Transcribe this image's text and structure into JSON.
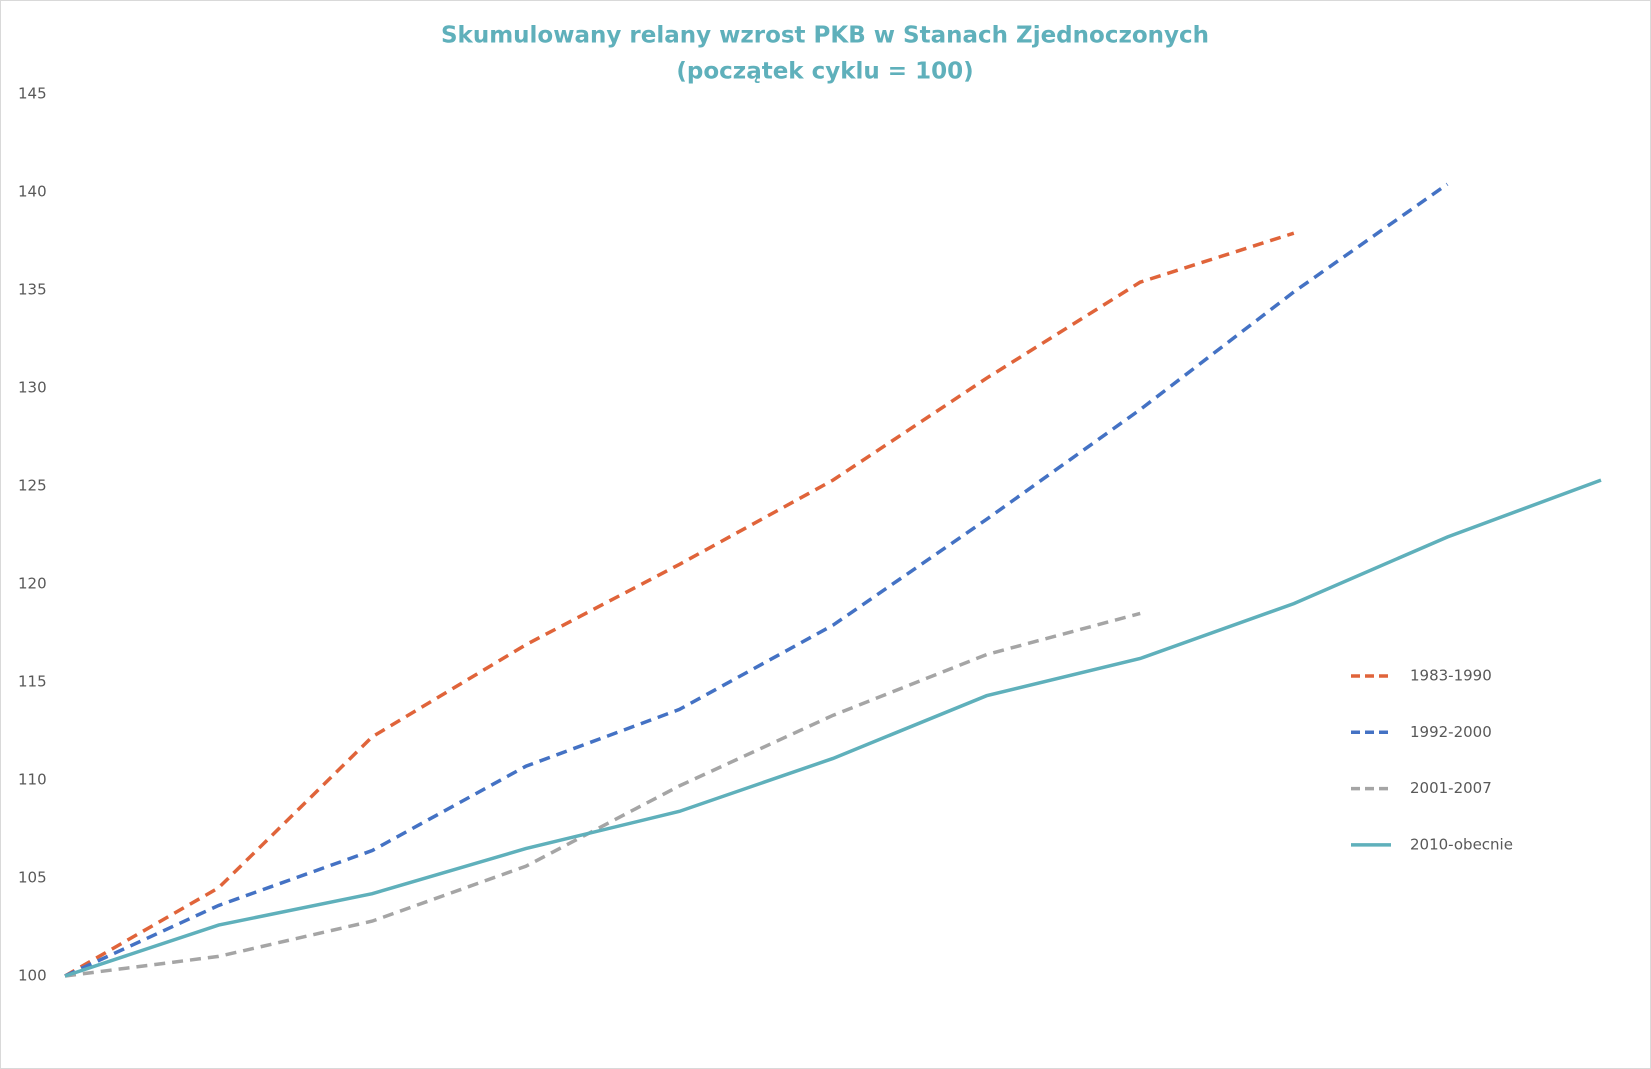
{
  "chart_data": {
    "type": "line",
    "title": "Skumulowany relany wzrost PKB w Stanach Zjednoczonych",
    "subtitle": "(początek cyklu = 100)",
    "categories": [
      null,
      null,
      null,
      null,
      null,
      null,
      null,
      null,
      null,
      null,
      null
    ],
    "series": [
      {
        "name": "1983-1990",
        "color": "#e0643a",
        "dashed": true,
        "values": [
          100,
          104.5,
          112.2,
          116.9,
          121,
          125.3,
          130.5,
          135.4,
          137.9,
          null,
          null
        ]
      },
      {
        "name": "1992-2000",
        "color": "#4472c4",
        "dashed": true,
        "values": [
          100,
          103.6,
          106.4,
          110.7,
          113.6,
          117.9,
          123.3,
          128.9,
          134.9,
          140.4,
          null
        ]
      },
      {
        "name": "2001-2007",
        "color": "#a5a5a5",
        "dashed": true,
        "values": [
          100,
          101,
          102.8,
          105.6,
          109.7,
          113.3,
          116.4,
          118.5,
          null,
          null,
          null
        ]
      },
      {
        "name": "2010-obecnie",
        "color": "#5fb0bb",
        "dashed": false,
        "values": [
          100,
          102.6,
          104.2,
          106.5,
          108.4,
          111.1,
          114.3,
          116.2,
          119,
          122.4,
          125.3
        ]
      }
    ],
    "ylim": [
      100,
      145
    ],
    "yticks": [
      100,
      105,
      110,
      115,
      120,
      125,
      130,
      135,
      140,
      145
    ],
    "grid": false,
    "legend": "right"
  }
}
